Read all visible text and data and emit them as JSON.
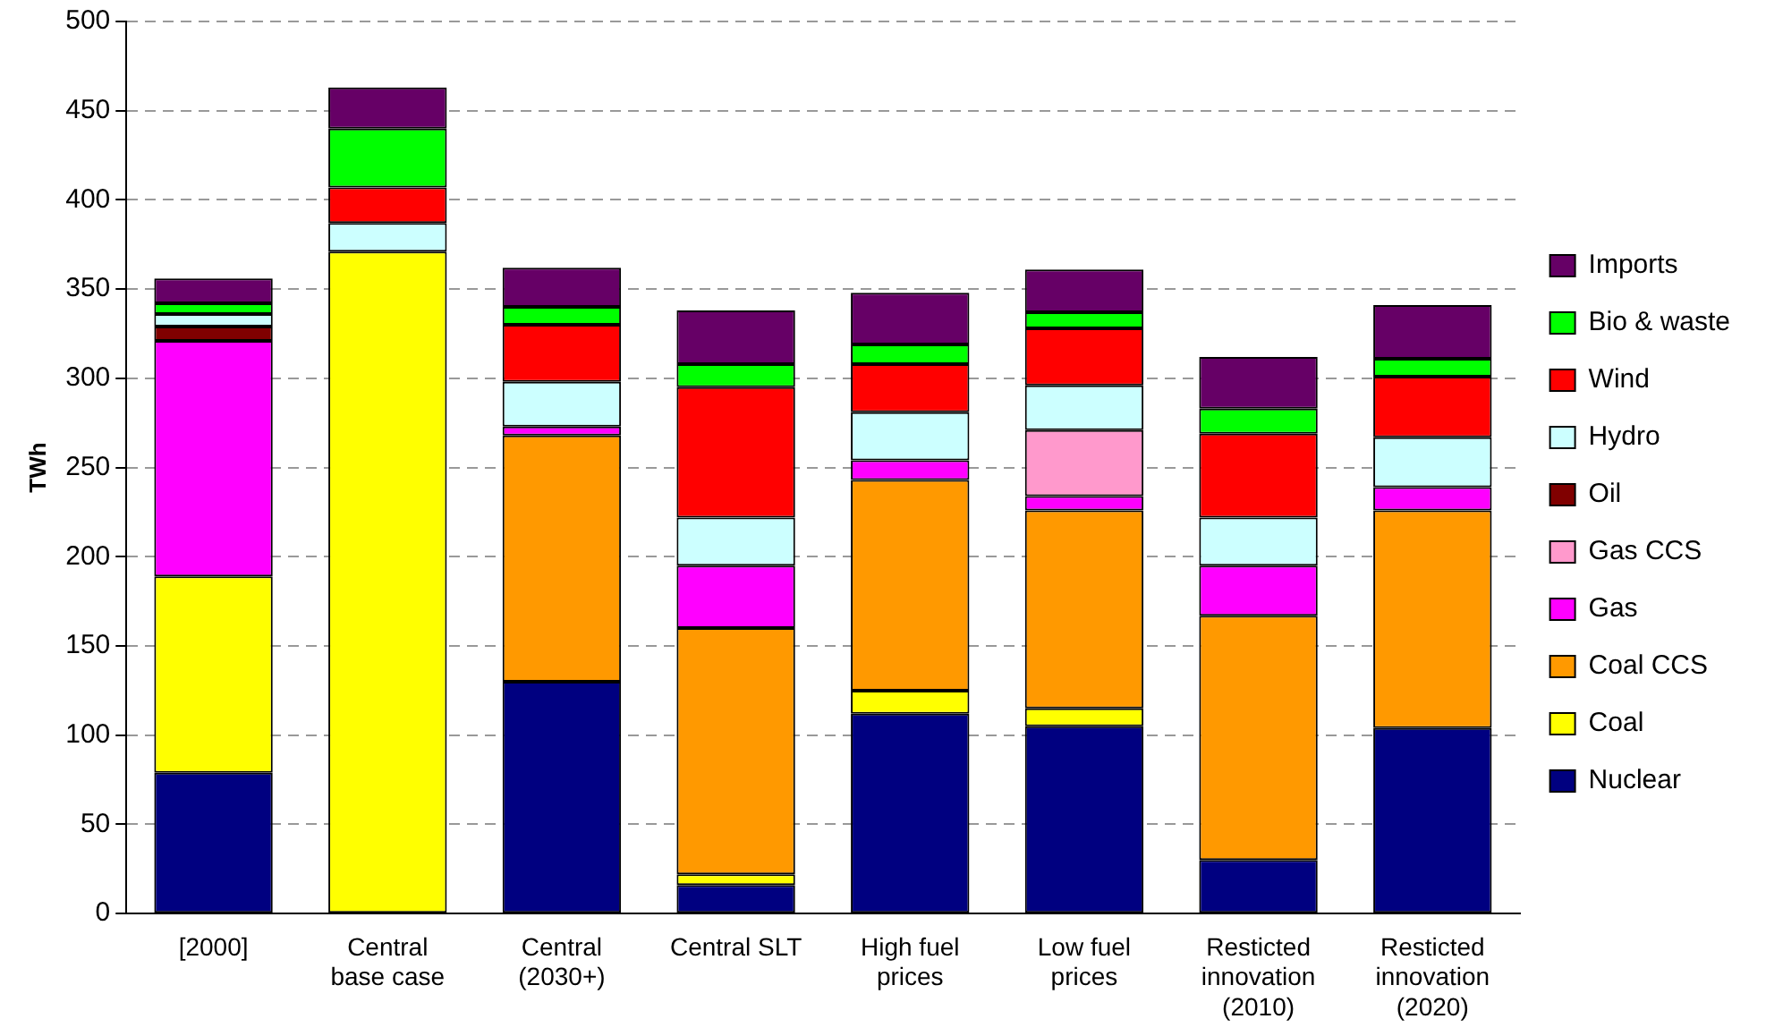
{
  "chart_data": {
    "type": "bar",
    "stacked": true,
    "ylabel": "TWh",
    "ylim": [
      0,
      500
    ],
    "yticks": [
      0,
      50,
      100,
      150,
      200,
      250,
      300,
      350,
      400,
      450,
      500
    ],
    "grid": "y",
    "legend": "right",
    "categories": [
      "[2000]",
      "Central base case",
      "Central (2030+)",
      "Central SLT",
      "High fuel prices",
      "Low fuel prices",
      "Resticted innovation (2010)",
      "Resticted innovation (2020)"
    ],
    "series": [
      {
        "name": "Nuclear",
        "color": "#000080",
        "values": [
          79,
          null,
          130,
          16,
          112,
          105,
          30,
          104
        ]
      },
      {
        "name": "Coal",
        "color": "#ffff00",
        "values": [
          110,
          371,
          null,
          6,
          13,
          10,
          null,
          null
        ]
      },
      {
        "name": "Coal CCS",
        "color": "#ff9900",
        "values": [
          null,
          null,
          138,
          138,
          118,
          111,
          137,
          122
        ]
      },
      {
        "name": "Gas",
        "color": "#ff00ff",
        "values": [
          132,
          null,
          5,
          35,
          11,
          8,
          28,
          13
        ]
      },
      {
        "name": "Gas CCS",
        "color": "#ff99cc",
        "values": [
          null,
          null,
          null,
          null,
          null,
          37,
          null,
          null
        ]
      },
      {
        "name": "Oil",
        "color": "#800000",
        "values": [
          8,
          null,
          null,
          null,
          null,
          null,
          null,
          null
        ]
      },
      {
        "name": "Hydro",
        "color": "#ccffff",
        "values": [
          7,
          16,
          25,
          27,
          27,
          25,
          27,
          28
        ]
      },
      {
        "name": "Wind",
        "color": "#ff0000",
        "values": [
          null,
          20,
          32,
          73,
          27,
          32,
          47,
          34
        ]
      },
      {
        "name": "Bio & waste",
        "color": "#00ff00",
        "values": [
          6,
          33,
          10,
          13,
          11,
          9,
          14,
          10
        ]
      },
      {
        "name": "Imports",
        "color": "#660066",
        "values": [
          14,
          23,
          22,
          30,
          29,
          24,
          29,
          30
        ]
      }
    ]
  }
}
